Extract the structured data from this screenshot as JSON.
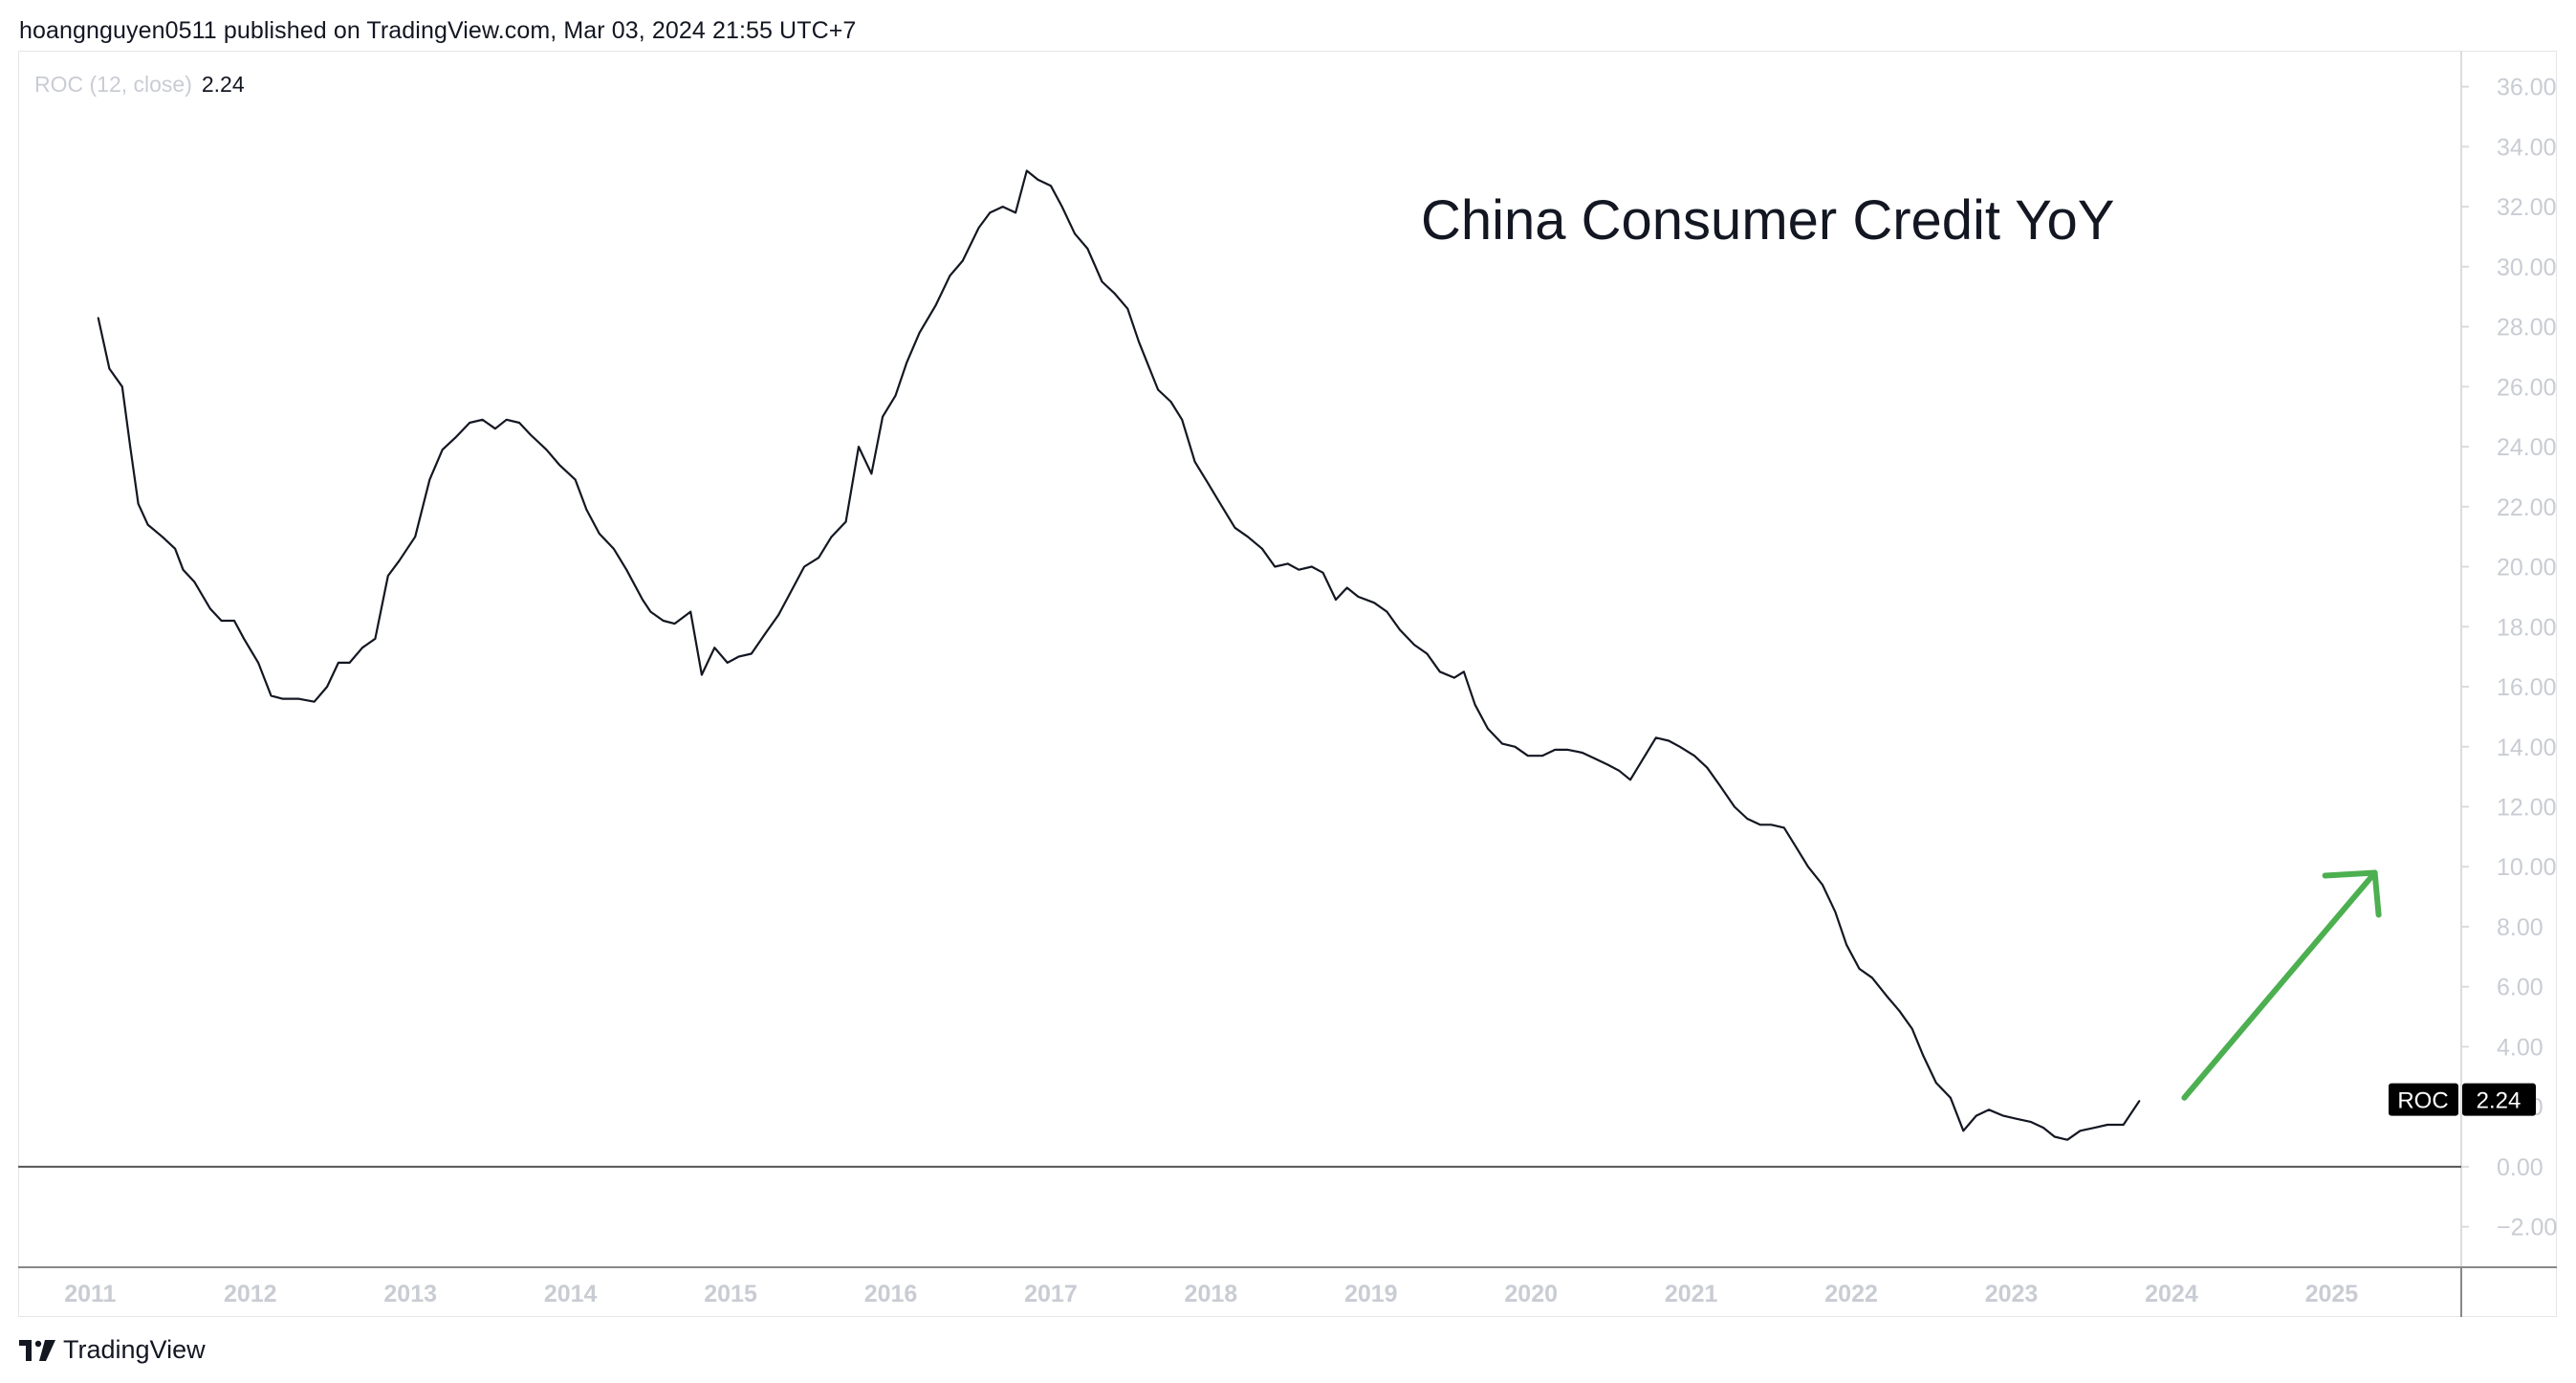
{
  "header": {
    "publisher_line": "hoangnguyen0511 published on TradingView.com, Mar 03, 2024 21:55 UTC+7"
  },
  "legend": {
    "indicator": "ROC (12, close)",
    "value": "2.24"
  },
  "annotation": {
    "title": "China Consumer Credit YoY",
    "arrow_color": "#4caf50"
  },
  "price_tag": {
    "label": "ROC",
    "value": "2.24"
  },
  "footer": {
    "brand": "TradingView",
    "logo_icon": "tradingview-logo-icon"
  },
  "colors": {
    "line": "#131722",
    "axis_text": "#c9ccd3",
    "tag_bg": "#000000",
    "arrow": "#4caf50"
  },
  "chart_data": {
    "type": "line",
    "series": [
      {
        "values": [
          [
            2011.05,
            28.3
          ],
          [
            2011.12,
            26.6
          ],
          [
            2011.2,
            26.0
          ],
          [
            2011.25,
            24.0
          ],
          [
            2011.3,
            22.1
          ],
          [
            2011.36,
            21.4
          ],
          [
            2011.45,
            21.0
          ],
          [
            2011.53,
            20.6
          ],
          [
            2011.58,
            19.9
          ],
          [
            2011.65,
            19.5
          ],
          [
            2011.75,
            18.6
          ],
          [
            2011.82,
            18.2
          ],
          [
            2011.9,
            18.2
          ],
          [
            2011.96,
            17.6
          ],
          [
            2012.05,
            16.8
          ],
          [
            2012.13,
            15.7
          ],
          [
            2012.2,
            15.6
          ],
          [
            2012.3,
            15.6
          ],
          [
            2012.4,
            15.5
          ],
          [
            2012.48,
            16.0
          ],
          [
            2012.55,
            16.8
          ],
          [
            2012.62,
            16.8
          ],
          [
            2012.7,
            17.3
          ],
          [
            2012.78,
            17.6
          ],
          [
            2012.86,
            19.7
          ],
          [
            2012.93,
            20.2
          ],
          [
            2013.03,
            21.0
          ],
          [
            2013.12,
            22.9
          ],
          [
            2013.2,
            23.9
          ],
          [
            2013.28,
            24.3
          ],
          [
            2013.37,
            24.8
          ],
          [
            2013.45,
            24.9
          ],
          [
            2013.53,
            24.6
          ],
          [
            2013.6,
            24.9
          ],
          [
            2013.68,
            24.8
          ],
          [
            2013.75,
            24.4
          ],
          [
            2013.85,
            23.9
          ],
          [
            2013.93,
            23.4
          ],
          [
            2014.03,
            22.9
          ],
          [
            2014.1,
            21.9
          ],
          [
            2014.18,
            21.1
          ],
          [
            2014.27,
            20.6
          ],
          [
            2014.35,
            19.9
          ],
          [
            2014.45,
            18.9
          ],
          [
            2014.5,
            18.5
          ],
          [
            2014.58,
            18.2
          ],
          [
            2014.65,
            18.1
          ],
          [
            2014.75,
            18.5
          ],
          [
            2014.82,
            16.4
          ],
          [
            2014.9,
            17.3
          ],
          [
            2014.98,
            16.8
          ],
          [
            2015.05,
            17.0
          ],
          [
            2015.13,
            17.1
          ],
          [
            2015.22,
            17.8
          ],
          [
            2015.3,
            18.4
          ],
          [
            2015.38,
            19.2
          ],
          [
            2015.46,
            20.0
          ],
          [
            2015.55,
            20.3
          ],
          [
            2015.63,
            21.0
          ],
          [
            2015.72,
            21.5
          ],
          [
            2015.8,
            24.0
          ],
          [
            2015.88,
            23.1
          ],
          [
            2015.95,
            25.0
          ],
          [
            2016.03,
            25.7
          ],
          [
            2016.1,
            26.8
          ],
          [
            2016.18,
            27.8
          ],
          [
            2016.28,
            28.7
          ],
          [
            2016.37,
            29.7
          ],
          [
            2016.45,
            30.2
          ],
          [
            2016.55,
            31.3
          ],
          [
            2016.62,
            31.8
          ],
          [
            2016.7,
            32.0
          ],
          [
            2016.78,
            31.8
          ],
          [
            2016.85,
            33.2
          ],
          [
            2016.92,
            32.9
          ],
          [
            2017.0,
            32.7
          ],
          [
            2017.07,
            32.0
          ],
          [
            2017.15,
            31.1
          ],
          [
            2017.23,
            30.6
          ],
          [
            2017.32,
            29.5
          ],
          [
            2017.4,
            29.1
          ],
          [
            2017.48,
            28.6
          ],
          [
            2017.55,
            27.5
          ],
          [
            2017.67,
            25.9
          ],
          [
            2017.75,
            25.5
          ],
          [
            2017.82,
            24.9
          ],
          [
            2017.9,
            23.5
          ],
          [
            2017.98,
            22.8
          ],
          [
            2018.07,
            22.0
          ],
          [
            2018.15,
            21.3
          ],
          [
            2018.23,
            21.0
          ],
          [
            2018.32,
            20.6
          ],
          [
            2018.4,
            20.0
          ],
          [
            2018.48,
            20.1
          ],
          [
            2018.55,
            19.9
          ],
          [
            2018.63,
            20.0
          ],
          [
            2018.7,
            19.8
          ],
          [
            2018.78,
            18.9
          ],
          [
            2018.85,
            19.3
          ],
          [
            2018.92,
            19.0
          ],
          [
            2019.02,
            18.8
          ],
          [
            2019.1,
            18.5
          ],
          [
            2019.18,
            17.9
          ],
          [
            2019.27,
            17.4
          ],
          [
            2019.35,
            17.1
          ],
          [
            2019.43,
            16.5
          ],
          [
            2019.52,
            16.3
          ],
          [
            2019.58,
            16.5
          ],
          [
            2019.65,
            15.4
          ],
          [
            2019.73,
            14.6
          ],
          [
            2019.82,
            14.1
          ],
          [
            2019.9,
            14.0
          ],
          [
            2019.98,
            13.7
          ],
          [
            2020.07,
            13.7
          ],
          [
            2020.15,
            13.9
          ],
          [
            2020.23,
            13.9
          ],
          [
            2020.32,
            13.8
          ],
          [
            2020.4,
            13.6
          ],
          [
            2020.48,
            13.4
          ],
          [
            2020.55,
            13.2
          ],
          [
            2020.62,
            12.9
          ],
          [
            2020.7,
            13.6
          ],
          [
            2020.78,
            14.3
          ],
          [
            2020.86,
            14.2
          ],
          [
            2020.93,
            14.0
          ],
          [
            2021.02,
            13.7
          ],
          [
            2021.1,
            13.3
          ],
          [
            2021.18,
            12.7
          ],
          [
            2021.27,
            12.0
          ],
          [
            2021.35,
            11.6
          ],
          [
            2021.43,
            11.4
          ],
          [
            2021.5,
            11.4
          ],
          [
            2021.58,
            11.3
          ],
          [
            2021.65,
            10.7
          ],
          [
            2021.73,
            10.0
          ],
          [
            2021.82,
            9.4
          ],
          [
            2021.9,
            8.5
          ],
          [
            2021.97,
            7.4
          ],
          [
            2022.05,
            6.6
          ],
          [
            2022.13,
            6.3
          ],
          [
            2022.22,
            5.7
          ],
          [
            2022.3,
            5.2
          ],
          [
            2022.38,
            4.6
          ],
          [
            2022.45,
            3.7
          ],
          [
            2022.53,
            2.8
          ],
          [
            2022.62,
            2.3
          ],
          [
            2022.7,
            1.2
          ],
          [
            2022.78,
            1.7
          ],
          [
            2022.86,
            1.9
          ],
          [
            2022.95,
            1.7
          ],
          [
            2023.03,
            1.6
          ],
          [
            2023.12,
            1.5
          ],
          [
            2023.2,
            1.3
          ],
          [
            2023.27,
            1.0
          ],
          [
            2023.35,
            0.9
          ],
          [
            2023.43,
            1.2
          ],
          [
            2023.52,
            1.3
          ],
          [
            2023.6,
            1.4
          ],
          [
            2023.7,
            1.4
          ],
          [
            2023.8,
            2.2
          ]
        ]
      }
    ],
    "x_ticks": [
      "2011",
      "2012",
      "2013",
      "2014",
      "2015",
      "2016",
      "2017",
      "2018",
      "2019",
      "2020",
      "2021",
      "2022",
      "2023",
      "2024",
      "2025"
    ],
    "y_ticks": [
      "36.00",
      "34.00",
      "32.00",
      "30.00",
      "28.00",
      "26.00",
      "24.00",
      "22.00",
      "20.00",
      "18.00",
      "16.00",
      "14.00",
      "12.00",
      "10.00",
      "8.00",
      "6.00",
      "4.00",
      "2.00",
      "0.00",
      "−2.00"
    ],
    "xlim": [
      2010.55,
      2025.81
    ],
    "ylim": [
      -3.35,
      37.2
    ],
    "zero_line": 0,
    "arrow": {
      "from": [
        2024.08,
        2.3
      ],
      "to": [
        2025.27,
        9.8
      ]
    },
    "grid": false,
    "legend_position": "top-left"
  }
}
